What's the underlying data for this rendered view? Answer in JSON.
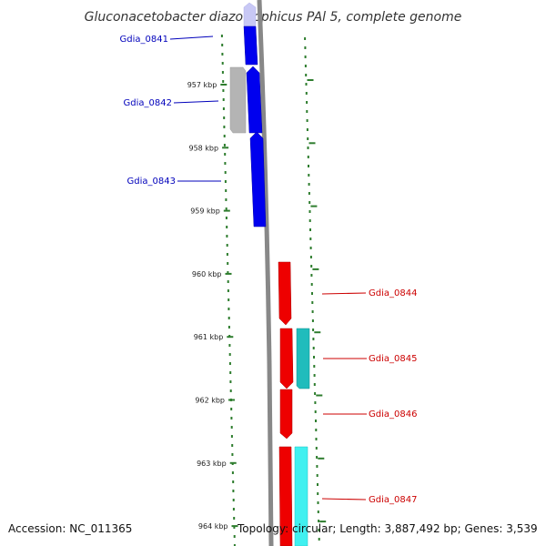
{
  "title": "Gluconacetobacter diazotrophicus PAl 5, complete genome",
  "footer": {
    "accession": "Accession: NC_011365",
    "topology": "Topology: circular; Length: 3,887,492 bp; Genes: 3,539"
  },
  "colors": {
    "backbone": "#888888",
    "ticks": "#2e7d2e",
    "forward_gene": "#0000ee",
    "forward_gene_faded": "#c8c8f5",
    "reverse_gene": "#ee0000",
    "pseudo_gene": "#b4b4b4",
    "cyan_feature": "#20bcbc",
    "cyan_feature_light": "#40f0f0",
    "forward_label": "#0000bb",
    "reverse_label": "#cc0000"
  },
  "ticks": [
    {
      "label": "957 kbp"
    },
    {
      "label": "958 kbp"
    },
    {
      "label": "959 kbp"
    },
    {
      "label": "960 kbp"
    },
    {
      "label": "961 kbp"
    },
    {
      "label": "962 kbp"
    },
    {
      "label": "963 kbp"
    },
    {
      "label": "964 kbp"
    }
  ],
  "genes": [
    {
      "label": "Gdia_0841",
      "strand": "forward"
    },
    {
      "label": "Gdia_0842",
      "strand": "forward"
    },
    {
      "label": "Gdia_0843",
      "strand": "forward"
    },
    {
      "label": "Gdia_0844",
      "strand": "reverse"
    },
    {
      "label": "Gdia_0845",
      "strand": "reverse"
    },
    {
      "label": "Gdia_0846",
      "strand": "reverse"
    },
    {
      "label": "Gdia_0847",
      "strand": "reverse"
    }
  ]
}
